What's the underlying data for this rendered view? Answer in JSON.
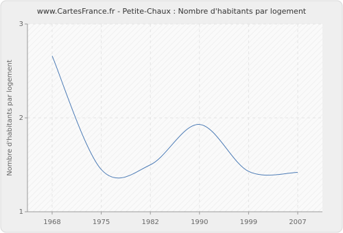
{
  "chart_data": {
    "type": "line",
    "title": "www.CartesFrance.fr - Petite-Chaux : Nombre d'habitants par logement",
    "y_label": "Nombre d'habitants par logement",
    "categories": [
      "1968",
      "1975",
      "1982",
      "1990",
      "1999",
      "2007"
    ],
    "series": [
      {
        "name": "Nombre d'habitants par logement",
        "color": "#4a7ab5",
        "values": [
          2.66,
          1.45,
          1.5,
          1.93,
          1.43,
          1.42
        ]
      }
    ],
    "ylim": [
      1,
      3
    ],
    "yticks": [
      1,
      2,
      3
    ],
    "grid": true
  }
}
